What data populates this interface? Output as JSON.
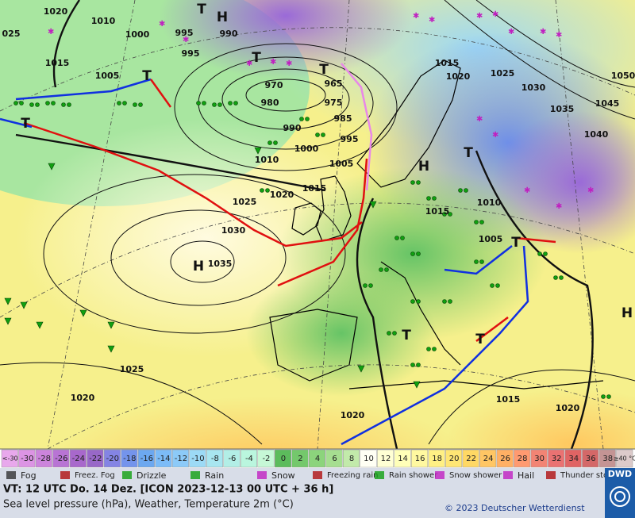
{
  "map": {
    "pressure_labels": [
      "1020",
      "1010",
      "1000",
      "995",
      "995",
      "990",
      "025",
      "1015",
      "1005",
      "970",
      "965",
      "980",
      "975",
      "985",
      "990",
      "995",
      "1000",
      "1005",
      "1010",
      "1015",
      "1020",
      "1025",
      "1030",
      "1035",
      "1015",
      "1020",
      "1025",
      "1030",
      "1035",
      "1040",
      "1045",
      "1050",
      "1015",
      "1010",
      "1005",
      "1025",
      "1020",
      "1020",
      "1015",
      "1020"
    ],
    "pressure_centers": [
      "H",
      "H",
      "H",
      "H",
      "T",
      "T",
      "T",
      "T",
      "T",
      "T",
      "T",
      "T",
      "T"
    ]
  },
  "temperature_scale": {
    "labels": [
      "<-30",
      "-30",
      "-28",
      "-26",
      "-24",
      "-22",
      "-20",
      "-18",
      "-16",
      "-14",
      "-12",
      "-10",
      "-8",
      "-6",
      "-4",
      "-2",
      "0",
      "2",
      "4",
      "6",
      "8",
      "10",
      "12",
      "14",
      "16",
      "18",
      "20",
      "22",
      "24",
      "26",
      "28",
      "30",
      "32",
      "34",
      "36",
      "38",
      "≥40 °C"
    ],
    "colors": [
      "#e8a8ec",
      "#dc94e4",
      "#cc84dc",
      "#b874d4",
      "#a868cc",
      "#9868c8",
      "#8484e4",
      "#7494ec",
      "#6ca8f0",
      "#7cbcf8",
      "#8ccaf8",
      "#9cdaf6",
      "#a8e6f0",
      "#b2eee6",
      "#baf6de",
      "#c6f8d6",
      "#5cbc5c",
      "#74c86c",
      "#8cd47c",
      "#a6de90",
      "#c2eaaa",
      "#fffff4",
      "#ffffd4",
      "#ffffb8",
      "#fff8a0",
      "#fff084",
      "#ffe674",
      "#ffd864",
      "#ffc664",
      "#ffb064",
      "#ff9a70",
      "#f28474",
      "#ea7272",
      "#e06464",
      "#d46868",
      "#c49494",
      "#dccaca"
    ]
  },
  "weather_legend": [
    "Fog",
    "Freez. Fog",
    "Drizzle",
    "Rain",
    "Snow",
    "Freezing rain",
    "Rain shower",
    "Snow shower",
    "Hail",
    "Thunder storm"
  ],
  "footer": {
    "valid_time": "VT: 12 UTC Do.  14 Dez. [ICON 2023-12-13  00 UTC + 36 h]",
    "description": "Sea level pressure (hPa), Weather, Temperature 2m (°C)",
    "copyright": "© 2023 Deutscher Wetterdienst",
    "logo": "DWD"
  }
}
